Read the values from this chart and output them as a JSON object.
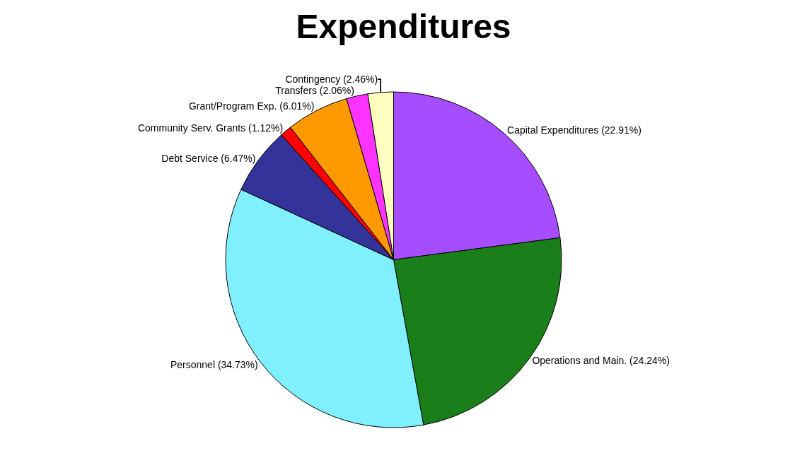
{
  "chart_data": {
    "type": "pie",
    "title": "Expenditures",
    "categories": [
      "Capital Expenditures (22.91%)",
      "Operations and Main. (24.24%)",
      "Personnel (34.73%)",
      "Debt Service (6.47%)",
      "Community Serv. Grants (1.12%)",
      "Grant/Program Exp. (6.01%)",
      "Transfers (2.06%)",
      "Contingency (2.46%)"
    ],
    "values": [
      22.91,
      24.24,
      34.73,
      6.47,
      1.12,
      6.01,
      2.06,
      2.46
    ],
    "colors": [
      "#a64dff",
      "#1a7f1a",
      "#80f0ff",
      "#333399",
      "#ff0000",
      "#ff9900",
      "#ff33ff",
      "#ffffc0"
    ],
    "legend": false
  }
}
